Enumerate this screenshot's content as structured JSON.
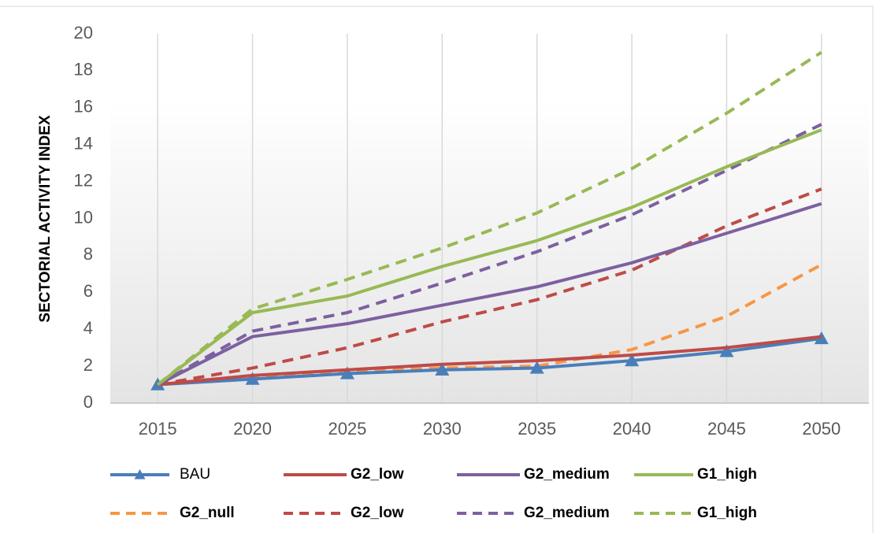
{
  "chart_data": {
    "type": "line",
    "y_label": "SECTORIAL ACTIVITY INDEX",
    "categories": [
      "2015",
      "2020",
      "2025",
      "2030",
      "2035",
      "2040",
      "2045",
      "2050"
    ],
    "ylim": [
      0,
      20
    ],
    "yticks": [
      0,
      2,
      4,
      6,
      8,
      10,
      12,
      14,
      16,
      18,
      20
    ],
    "grid": "vertical",
    "series": [
      {
        "name": "BAU",
        "color": "#4a7ebb",
        "dash": false,
        "marker": "triangle",
        "values": [
          1,
          1.3,
          1.6,
          1.8,
          1.9,
          2.3,
          2.8,
          3.5
        ]
      },
      {
        "name": "G2_low",
        "color": "#be4b48",
        "dash": false,
        "values": [
          1,
          1.5,
          1.8,
          2.1,
          2.3,
          2.6,
          3.0,
          3.6
        ]
      },
      {
        "name": "G2_medium",
        "color": "#7d60a0",
        "dash": false,
        "values": [
          1,
          3.6,
          4.3,
          5.3,
          6.3,
          7.6,
          9.2,
          10.8
        ]
      },
      {
        "name": "G1_high",
        "color": "#98b954",
        "dash": false,
        "values": [
          1,
          4.9,
          5.8,
          7.4,
          8.8,
          10.6,
          12.8,
          14.8
        ]
      },
      {
        "name": "G2_null",
        "color": "#f79646",
        "dash": true,
        "values": [
          1,
          1.4,
          1.7,
          1.9,
          2.0,
          2.9,
          4.7,
          7.5
        ]
      },
      {
        "name": "G2_low",
        "color": "#be4b48",
        "dash": true,
        "values": [
          1,
          1.9,
          3.0,
          4.4,
          5.6,
          7.2,
          9.6,
          11.6
        ]
      },
      {
        "name": "G2_medium",
        "color": "#7d60a0",
        "dash": true,
        "values": [
          1,
          3.9,
          4.9,
          6.5,
          8.2,
          10.2,
          12.6,
          15.1
        ]
      },
      {
        "name": "G1_high",
        "color": "#98b954",
        "dash": true,
        "values": [
          1,
          5.1,
          6.7,
          8.4,
          10.3,
          12.7,
          15.7,
          19.0
        ]
      }
    ]
  }
}
